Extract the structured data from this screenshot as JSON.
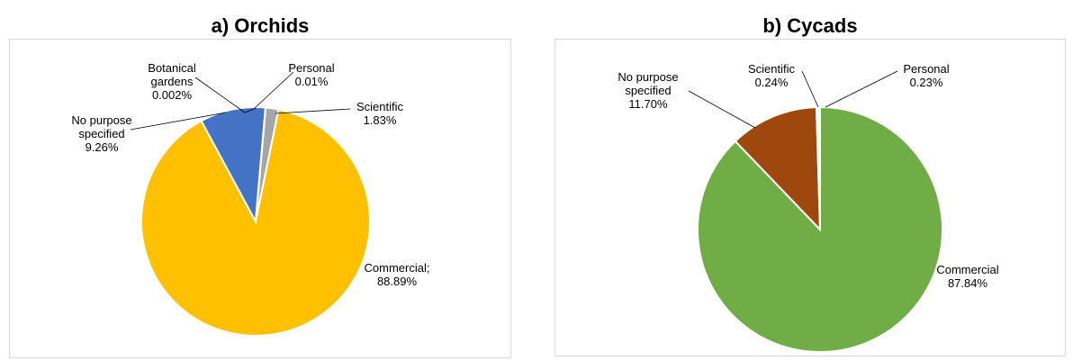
{
  "chart_data": [
    {
      "type": "pie",
      "title": "a) Orchids",
      "colors": {
        "Commercial": "#ffc000",
        "No purpose specified": "#4472c4",
        "Botanical gardens": "#5b9bd5",
        "Personal": "#ed7d31",
        "Scientific": "#a5a5a5"
      },
      "slices": [
        {
          "key": "scientific",
          "name": "Scientific",
          "value": 1.83,
          "label_lines": [
            "Scientific",
            "1.83%"
          ]
        },
        {
          "key": "commercial",
          "name": "Commercial",
          "value": 88.89,
          "label_lines": [
            "Commercial;",
            "88.89%"
          ]
        },
        {
          "key": "nopurpose",
          "name": "No purpose specified",
          "value": 9.26,
          "label_lines": [
            "No purpose",
            "specified",
            "9.26%"
          ]
        },
        {
          "key": "botanical",
          "name": "Botanical gardens",
          "value": 0.002,
          "label_lines": [
            "Botanical",
            "gardens",
            "0.002%"
          ]
        },
        {
          "key": "personal",
          "name": "Personal",
          "value": 0.01,
          "label_lines": [
            "Personal",
            "0.01%"
          ]
        }
      ]
    },
    {
      "type": "pie",
      "title": "b) Cycads",
      "colors": {
        "Commercial": "#70ad47",
        "No purpose specified": "#9e480e",
        "Scientific": "#a5a5a5",
        "Personal": "#ffc000"
      },
      "slices": [
        {
          "key": "commercial",
          "name": "Commercial",
          "value": 87.84,
          "label_lines": [
            "Commercial",
            "87.84%"
          ]
        },
        {
          "key": "nopurpose",
          "name": "No purpose specified",
          "value": 11.7,
          "label_lines": [
            "No purpose",
            "specified",
            "11.70%"
          ]
        },
        {
          "key": "scientific",
          "name": "Scientific",
          "value": 0.24,
          "label_lines": [
            "Scientific",
            "0.24%"
          ]
        },
        {
          "key": "personal",
          "name": "Personal",
          "value": 0.23,
          "label_lines": [
            "Personal",
            "0.23%"
          ]
        }
      ]
    }
  ]
}
